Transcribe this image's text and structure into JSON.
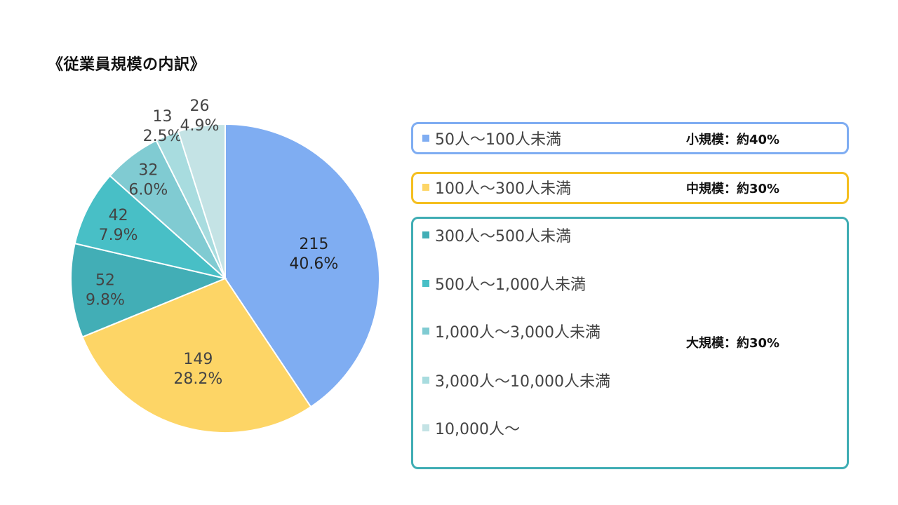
{
  "title": "《従業員規模の内訳》",
  "colors": {
    "small_border": "#7fadf2",
    "medium_border": "#f5bf1f",
    "large_border": "#3fadb4"
  },
  "chart_data": {
    "type": "pie",
    "title": "《従業員規模の内訳》",
    "slices": [
      {
        "label": "50人～100人未満",
        "value": 215,
        "percent": "40.6%",
        "color": "#7fadf2"
      },
      {
        "label": "100人～300人未満",
        "value": 149,
        "percent": "28.2%",
        "color": "#fdd566"
      },
      {
        "label": "300人～500人未満",
        "value": 52,
        "percent": "9.8%",
        "color": "#42aeb6"
      },
      {
        "label": "500人～1,000人未満",
        "value": 42,
        "percent": "7.9%",
        "color": "#48bfc6"
      },
      {
        "label": "1,000人～3,000人未満",
        "value": 32,
        "percent": "6.0%",
        "color": "#80cbd2"
      },
      {
        "label": "3,000人～10,000人未満",
        "value": 13,
        "percent": "2.5%",
        "color": "#a8dcdf"
      },
      {
        "label": "10,000人～",
        "value": 26,
        "percent": "4.9%",
        "color": "#c4e3e5"
      }
    ],
    "legend_placement": "right"
  },
  "groups": [
    {
      "label": "小規模：約40%"
    },
    {
      "label": "中規模：約30%"
    },
    {
      "label": "大規模：約30%"
    }
  ]
}
